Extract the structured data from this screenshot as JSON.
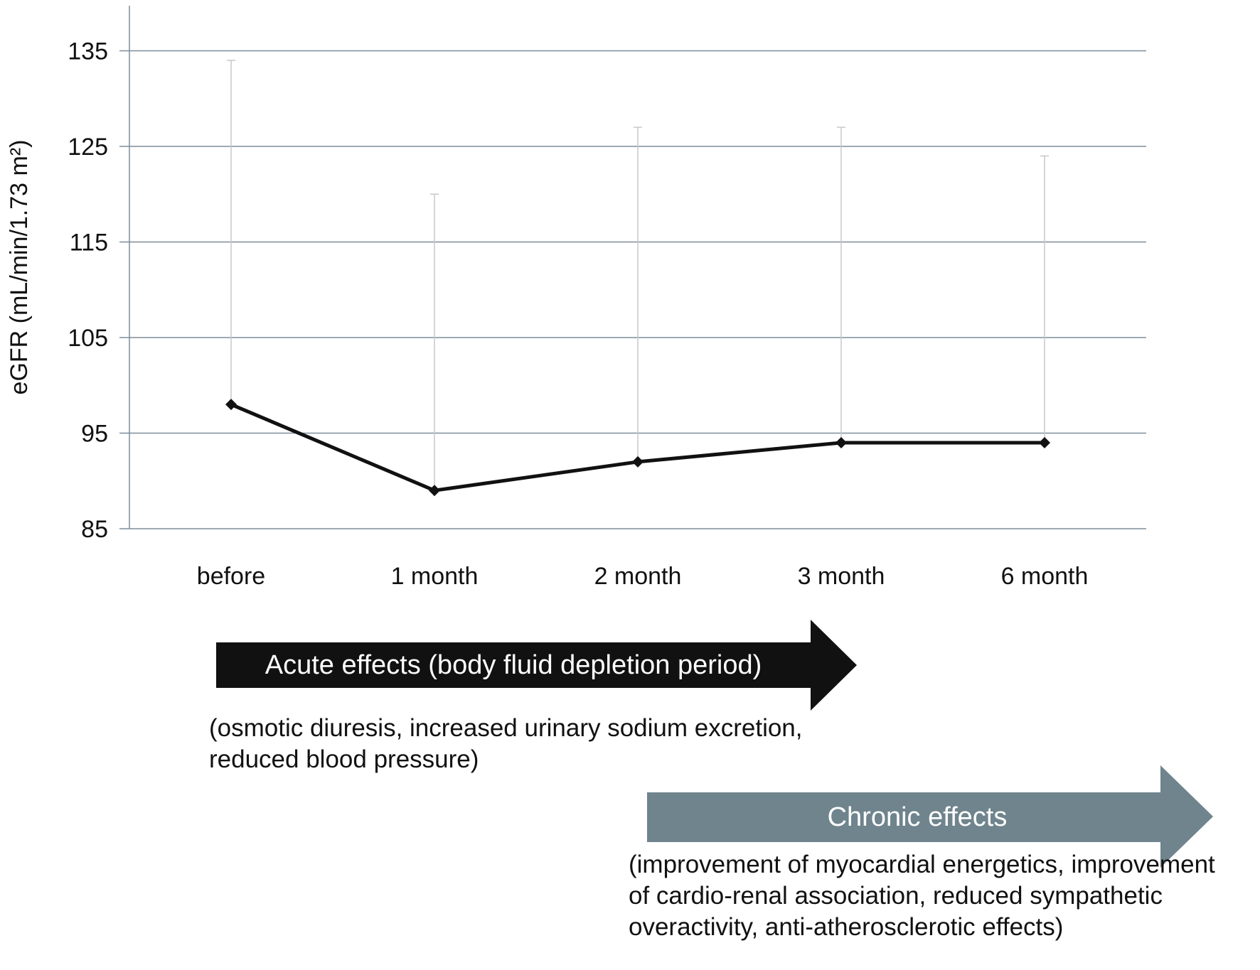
{
  "chart_data": {
    "type": "line",
    "title": "",
    "xlabel": "",
    "ylabel": "eGFR (mL/min/1.73 m²)",
    "categories": [
      "before",
      "1 month",
      "2 month",
      "3 month",
      "6 month"
    ],
    "series": [
      {
        "values": [
          98,
          89,
          92,
          94,
          94
        ],
        "error_upper": [
          134,
          120,
          127,
          127,
          124
        ]
      }
    ],
    "ylim": [
      85,
      140
    ],
    "yticks": [
      85,
      95,
      105,
      115,
      125,
      135
    ],
    "grid": true,
    "legend": "none",
    "colors": {
      "line": "#111111",
      "grid": "#7f8d99",
      "error": "#c8c8c8"
    }
  },
  "annotations": {
    "acute": {
      "label": "Acute effects (body fluid depletion period)",
      "note_lines": [
        "(osmotic diuresis, increased urinary sodium excretion,",
        "reduced blood pressure)"
      ],
      "color": "#111111"
    },
    "chronic": {
      "label": "Chronic effects",
      "note_lines": [
        "(improvement of myocardial energetics, improvement",
        "of cardio-renal association, reduced sympathetic",
        "overactivity, anti-atherosclerotic effects)"
      ],
      "color": "#6f848d"
    }
  }
}
